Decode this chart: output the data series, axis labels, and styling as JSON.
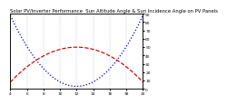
{
  "title": "Solar PV/Inverter Performance  Sun Altitude Angle & Sun Incidence Angle on PV Panels",
  "background_color": "#ffffff",
  "grid_color": "#bbbbbb",
  "blue_color": "#0000cc",
  "red_color": "#cc0000",
  "ylim": [
    0,
    90
  ],
  "xlim": [
    4,
    20
  ],
  "x_ticks": [
    4,
    6,
    8,
    10,
    12,
    14,
    16,
    18,
    20
  ],
  "x_tick_labels": [
    "4",
    "6",
    "8",
    "10",
    "12",
    "14",
    "16",
    "18",
    "20"
  ],
  "y_ticks_right": [
    0,
    10,
    20,
    30,
    40,
    50,
    60,
    70,
    80,
    90
  ],
  "title_fontsize": 3.8,
  "tick_fontsize": 3.2,
  "blue_lw": 0.9,
  "red_lw": 0.85
}
